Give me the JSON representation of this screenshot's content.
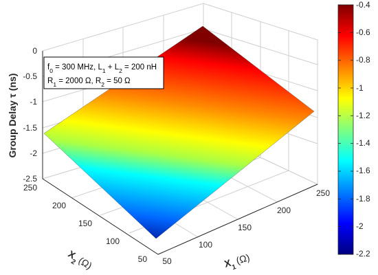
{
  "chart_data": {
    "type": "surface",
    "function": "Group delay tau(X1, X2) in ns",
    "x1": {
      "label_prefix": "X",
      "label_sub": "1",
      "label_unit": "(Ω)",
      "ticks": [
        50,
        100,
        150,
        200,
        250
      ],
      "range": [
        50,
        250
      ]
    },
    "x2": {
      "label_prefix": "X",
      "label_sub": "2",
      "label_unit": "(Ω)",
      "ticks": [
        50,
        100,
        150,
        200,
        250
      ],
      "range": [
        50,
        250
      ]
    },
    "z": {
      "label": "Group Delay τ (ns)",
      "ticks": [
        "0",
        "-0.5",
        "-1",
        "-1.5",
        "-2",
        "-2.5"
      ],
      "range": [
        -2.5,
        0
      ]
    },
    "corners": [
      {
        "x1": 50,
        "x2": 250,
        "z": -1.55
      },
      {
        "x1": 250,
        "x2": 250,
        "z": -0.38
      },
      {
        "x1": 250,
        "x2": 50,
        "z": -1.2
      },
      {
        "x1": 50,
        "x2": 50,
        "z": -2.2
      }
    ],
    "colorbar": {
      "colormap": "jet",
      "range": [
        -2.2,
        -0.4
      ],
      "ticks": [
        "-0.4",
        "-0.6",
        "-0.8",
        "-1",
        "-1.2",
        "-1.4",
        "-1.6",
        "-1.8",
        "-2",
        "-2.2"
      ]
    },
    "annotation": {
      "line1": {
        "f_prefix": "f",
        "f_sub": "0",
        "f_rest": " = 300 MHz, L",
        "l1_sub": "1",
        "mid": " + L",
        "l2_sub": "2",
        "end": " = 200 nH"
      },
      "line2": {
        "r1_prefix": "R",
        "r1_sub": "1",
        "r1_rest": " = 2000 Ω, R",
        "r2_sub": "2",
        "r2_rest": " = 50 Ω"
      }
    },
    "grid": true,
    "box": true
  }
}
